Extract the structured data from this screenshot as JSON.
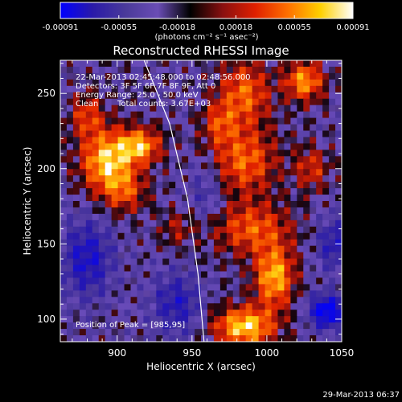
{
  "chart_data": {
    "type": "heatmap",
    "title": "Reconstructed RHESSI Image",
    "xlabel": "Heliocentric X (arcsec)",
    "ylabel": "Heliocentric Y (arcsec)",
    "xlim": [
      862,
      1050
    ],
    "ylim": [
      85,
      272
    ],
    "x_ticks": [
      900,
      950,
      1000,
      1050
    ],
    "y_ticks": [
      100,
      150,
      200,
      250
    ],
    "colorbar": {
      "min": -0.00091,
      "max": 0.00091,
      "ticks": [
        "-0.00091",
        "-0.00055",
        "-0.00018",
        "0.00018",
        "0.00055",
        "0.00091"
      ],
      "unit_label": "(photons cm⁻² s⁻¹ asec⁻²)",
      "colors": [
        "#0000ff",
        "#2a1aa8",
        "#4a3a9a",
        "#6a4db5",
        "#000000",
        "#8a1010",
        "#e02000",
        "#ff7000",
        "#ffd000",
        "#ffffff"
      ]
    },
    "annotations": {
      "time_range": "22-Mar-2013 02:45:48.000 to 02:48:56.000",
      "detectors": "Detectors: 3F 5F 6F 7F 8F 9F, Att 0",
      "energy": "Energy Range: 25.0 - 50.0 keV",
      "method": "Clean",
      "counts": "Total counts: 3.67E+03",
      "peak": "Position of Peak = [985,95]"
    },
    "limb_curve": [
      [
        918,
        272
      ],
      [
        935,
        230
      ],
      [
        947,
        180
      ],
      [
        954,
        130
      ],
      [
        958,
        85
      ]
    ],
    "sources": [
      {
        "x": 893,
        "y": 205,
        "sx": 12,
        "sy": 14,
        "amp": 0.95
      },
      {
        "x": 915,
        "y": 215,
        "sx": 10,
        "sy": 8,
        "amp": 0.85
      },
      {
        "x": 905,
        "y": 185,
        "sx": 10,
        "sy": 10,
        "amp": 0.5
      },
      {
        "x": 880,
        "y": 235,
        "sx": 8,
        "sy": 10,
        "amp": 0.5
      },
      {
        "x": 985,
        "y": 95,
        "sx": 14,
        "sy": 9,
        "amp": 1.0
      },
      {
        "x": 1005,
        "y": 128,
        "sx": 9,
        "sy": 14,
        "amp": 0.9
      },
      {
        "x": 990,
        "y": 160,
        "sx": 18,
        "sy": 12,
        "amp": 0.6
      },
      {
        "x": 985,
        "y": 205,
        "sx": 15,
        "sy": 15,
        "amp": 0.65
      },
      {
        "x": 985,
        "y": 250,
        "sx": 12,
        "sy": 15,
        "amp": 0.65
      },
      {
        "x": 1025,
        "y": 258,
        "sx": 9,
        "sy": 9,
        "amp": 0.8
      },
      {
        "x": 968,
        "y": 230,
        "sx": 8,
        "sy": 10,
        "amp": 0.45
      },
      {
        "x": 940,
        "y": 160,
        "sx": 8,
        "sy": 8,
        "amp": 0.3
      },
      {
        "x": 1030,
        "y": 200,
        "sx": 8,
        "sy": 10,
        "amp": 0.45
      },
      {
        "x": 1040,
        "y": 105,
        "sx": 8,
        "sy": 8,
        "amp": -0.9
      },
      {
        "x": 880,
        "y": 140,
        "sx": 12,
        "sy": 18,
        "amp": -0.6
      },
      {
        "x": 940,
        "y": 110,
        "sx": 12,
        "sy": 15,
        "amp": -0.5
      },
      {
        "x": 960,
        "y": 185,
        "sx": 8,
        "sy": 14,
        "amp": -0.3
      },
      {
        "x": 1045,
        "y": 150,
        "sx": 8,
        "sy": 12,
        "amp": -0.5
      }
    ]
  },
  "footer": {
    "timestamp": "29-Mar-2013 06:37"
  }
}
